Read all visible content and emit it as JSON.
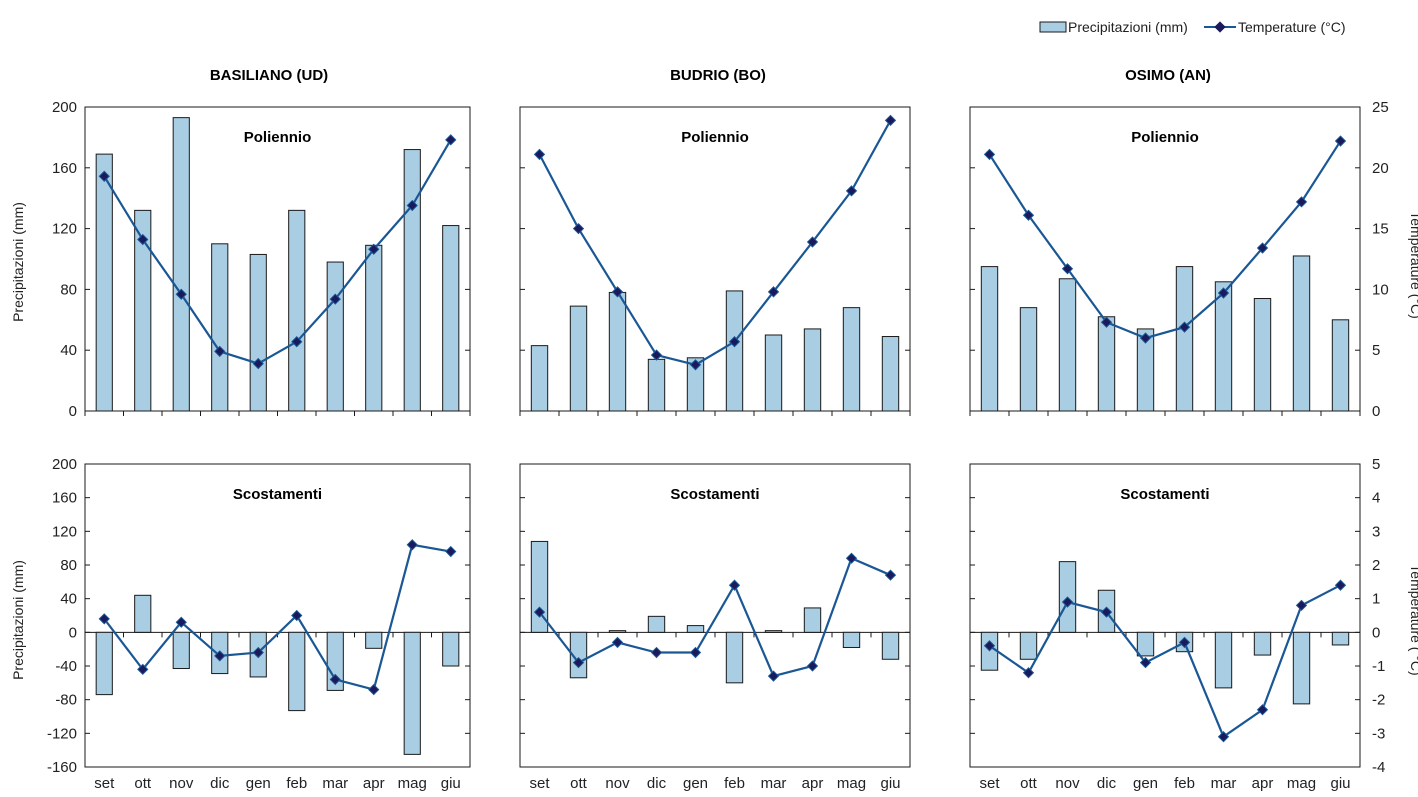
{
  "legend": {
    "precip_label": "Precipitazioni (mm)",
    "temp_label": "Temperature (°C)"
  },
  "colors": {
    "bar_fill": "#a9cde3",
    "bar_stroke": "#1a1a1a",
    "line": "#1a5795",
    "marker": "#1a1a5c",
    "frame": "#1a1a1a"
  },
  "stations": [
    "BASILIANO (UD)",
    "BUDRIO (BO)",
    "OSIMO (AN)"
  ],
  "panel_titles": [
    "Poliennio",
    "Scostamenti"
  ],
  "axes": {
    "left_label": "Precipitazioni (mm)",
    "right_label_top": "Temperature (°C)",
    "right_label_bottom": "Temperature ( °C)",
    "top_left_ticks": [
      "200",
      "160",
      "120",
      "80",
      "40",
      "0"
    ],
    "top_right_ticks": [
      "25",
      "20",
      "15",
      "10",
      "5",
      "0"
    ],
    "bottom_left_ticks": [
      "200",
      "160",
      "120",
      "80",
      "40",
      "0",
      "-40",
      "-80",
      "-120",
      "-160"
    ],
    "bottom_right_ticks": [
      "5",
      "4",
      "3",
      "2",
      "1",
      "0",
      "-1",
      "-2",
      "-3",
      "-4"
    ]
  },
  "chart_data": [
    {
      "type": "bar",
      "station": "BASILIANO (UD)",
      "panel": "Poliennio",
      "categories": [
        "set",
        "ott",
        "nov",
        "dic",
        "gen",
        "feb",
        "mar",
        "apr",
        "mag",
        "giu"
      ],
      "series": [
        {
          "name": "Precipitazioni (mm)",
          "kind": "bar",
          "axis": "left",
          "values": [
            169,
            132,
            193,
            110,
            103,
            132,
            98,
            109,
            172,
            122
          ]
        },
        {
          "name": "Temperature (°C)",
          "kind": "line",
          "axis": "right",
          "values": [
            19.3,
            14.1,
            9.6,
            4.9,
            3.9,
            5.7,
            9.2,
            13.3,
            16.9,
            22.3
          ]
        }
      ],
      "ylim_left": [
        0,
        200
      ],
      "ylim_right": [
        0,
        25
      ]
    },
    {
      "type": "bar",
      "station": "BUDRIO (BO)",
      "panel": "Poliennio",
      "categories": [
        "set",
        "ott",
        "nov",
        "dic",
        "gen",
        "feb",
        "mar",
        "apr",
        "mag",
        "giu"
      ],
      "series": [
        {
          "name": "Precipitazioni (mm)",
          "kind": "bar",
          "axis": "left",
          "values": [
            43,
            69,
            78,
            34,
            35,
            79,
            50,
            54,
            68,
            49
          ]
        },
        {
          "name": "Temperature (°C)",
          "kind": "line",
          "axis": "right",
          "values": [
            21.1,
            15.0,
            9.8,
            4.6,
            3.8,
            5.7,
            9.8,
            13.9,
            18.1,
            23.9
          ]
        }
      ],
      "ylim_left": [
        0,
        200
      ],
      "ylim_right": [
        0,
        25
      ]
    },
    {
      "type": "bar",
      "station": "OSIMO (AN)",
      "panel": "Poliennio",
      "categories": [
        "set",
        "ott",
        "nov",
        "dic",
        "gen",
        "feb",
        "mar",
        "apr",
        "mag",
        "giu"
      ],
      "series": [
        {
          "name": "Precipitazioni (mm)",
          "kind": "bar",
          "axis": "left",
          "values": [
            95,
            68,
            87,
            62,
            54,
            95,
            85,
            74,
            102,
            60
          ]
        },
        {
          "name": "Temperature (°C)",
          "kind": "line",
          "axis": "right",
          "values": [
            21.1,
            16.1,
            11.7,
            7.3,
            6.0,
            6.9,
            9.7,
            13.4,
            17.2,
            22.2
          ]
        }
      ],
      "ylim_left": [
        0,
        200
      ],
      "ylim_right": [
        0,
        25
      ]
    },
    {
      "type": "bar",
      "station": "BASILIANO (UD)",
      "panel": "Scostamenti",
      "categories": [
        "set",
        "ott",
        "nov",
        "dic",
        "gen",
        "feb",
        "mar",
        "apr",
        "mag",
        "giu"
      ],
      "series": [
        {
          "name": "Precipitazioni (mm)",
          "kind": "bar",
          "axis": "left",
          "values": [
            -74,
            44,
            -43,
            -49,
            -53,
            -93,
            -69,
            -19,
            -145,
            -40
          ]
        },
        {
          "name": "Temperature (°C)",
          "kind": "line",
          "axis": "right",
          "values": [
            0.4,
            -1.1,
            0.3,
            -0.7,
            -0.6,
            0.5,
            -1.4,
            -1.7,
            2.6,
            2.4
          ]
        }
      ],
      "ylim_left": [
        -160,
        200
      ],
      "ylim_right": [
        -4,
        5
      ]
    },
    {
      "type": "bar",
      "station": "BUDRIO (BO)",
      "panel": "Scostamenti",
      "categories": [
        "set",
        "ott",
        "nov",
        "dic",
        "gen",
        "feb",
        "mar",
        "apr",
        "mag",
        "giu"
      ],
      "series": [
        {
          "name": "Precipitazioni (mm)",
          "kind": "bar",
          "axis": "left",
          "values": [
            108,
            -54,
            2,
            19,
            8,
            -60,
            2,
            29,
            -18,
            -32
          ]
        },
        {
          "name": "Temperature (°C)",
          "kind": "line",
          "axis": "right",
          "values": [
            0.6,
            -0.9,
            -0.3,
            -0.6,
            -0.6,
            1.4,
            -1.3,
            -1.0,
            2.2,
            1.7
          ]
        }
      ],
      "ylim_left": [
        -160,
        200
      ],
      "ylim_right": [
        -4,
        5
      ]
    },
    {
      "type": "bar",
      "station": "OSIMO (AN)",
      "panel": "Scostamenti",
      "categories": [
        "set",
        "ott",
        "nov",
        "dic",
        "gen",
        "feb",
        "mar",
        "apr",
        "mag",
        "giu"
      ],
      "series": [
        {
          "name": "Precipitazioni (mm)",
          "kind": "bar",
          "axis": "left",
          "values": [
            -45,
            -32,
            84,
            50,
            -28,
            -23,
            -66,
            -27,
            -85,
            -15
          ]
        },
        {
          "name": "Temperature (°C)",
          "kind": "line",
          "axis": "right",
          "values": [
            -0.4,
            -1.2,
            0.9,
            0.6,
            -0.9,
            -0.3,
            -3.1,
            -2.3,
            0.8,
            1.4
          ]
        }
      ],
      "ylim_left": [
        -160,
        200
      ],
      "ylim_right": [
        -4,
        5
      ]
    }
  ]
}
